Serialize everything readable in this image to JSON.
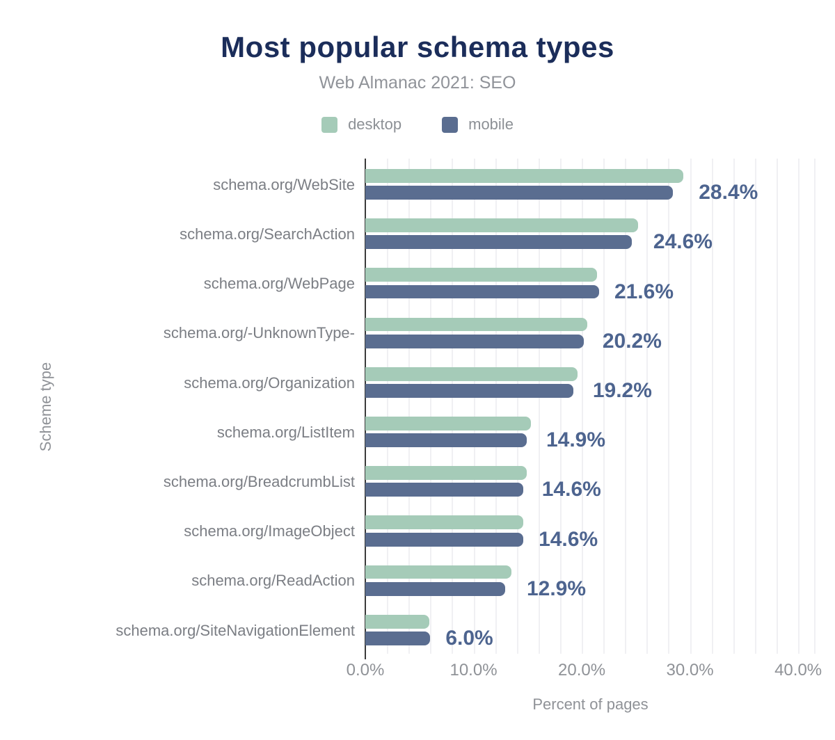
{
  "header": {
    "title": "Most popular schema types",
    "subtitle": "Web Almanac 2021: SEO"
  },
  "legend": {
    "items": [
      {
        "label": "desktop",
        "color": "#a5cbb8"
      },
      {
        "label": "mobile",
        "color": "#5a6d90"
      }
    ]
  },
  "chart_data": {
    "type": "bar",
    "orientation": "horizontal",
    "title": "Most popular schema types",
    "subtitle": "Web Almanac 2021: SEO",
    "xlabel": "Percent of pages",
    "ylabel": "Scheme type",
    "categories": [
      "schema.org/WebSite",
      "schema.org/SearchAction",
      "schema.org/WebPage",
      "schema.org/-UnknownType-",
      "schema.org/Organization",
      "schema.org/ListItem",
      "schema.org/BreadcrumbList",
      "schema.org/ImageObject",
      "schema.org/ReadAction",
      "schema.org/SiteNavigationElement"
    ],
    "series": [
      {
        "name": "desktop",
        "color": "#a5cbb8",
        "values": [
          29.4,
          25.2,
          21.4,
          20.5,
          19.6,
          15.3,
          14.9,
          14.6,
          13.5,
          5.9
        ]
      },
      {
        "name": "mobile",
        "color": "#5a6d90",
        "values": [
          28.4,
          24.6,
          21.6,
          20.2,
          19.2,
          14.9,
          14.6,
          14.6,
          12.9,
          6.0
        ]
      }
    ],
    "bar_labels": [
      "28.4%",
      "24.6%",
      "21.6%",
      "20.2%",
      "19.2%",
      "14.9%",
      "14.6%",
      "14.6%",
      "12.9%",
      "6.0%"
    ],
    "x_ticks": [
      {
        "value": 0,
        "label": "0.0%"
      },
      {
        "value": 10,
        "label": "10.0%"
      },
      {
        "value": 20,
        "label": "20.0%"
      },
      {
        "value": 30,
        "label": "30.0%"
      },
      {
        "value": 40,
        "label": "40.0%"
      }
    ],
    "xlim": [
      0,
      41.6
    ],
    "grid_step": 2,
    "grid_on": true,
    "legend_position": "top",
    "value_label_color": "#4d648f",
    "title_color": "#1b2d5a",
    "gridline_color": "#f0f0f3",
    "axis_line_color": "#3a3a3a"
  }
}
